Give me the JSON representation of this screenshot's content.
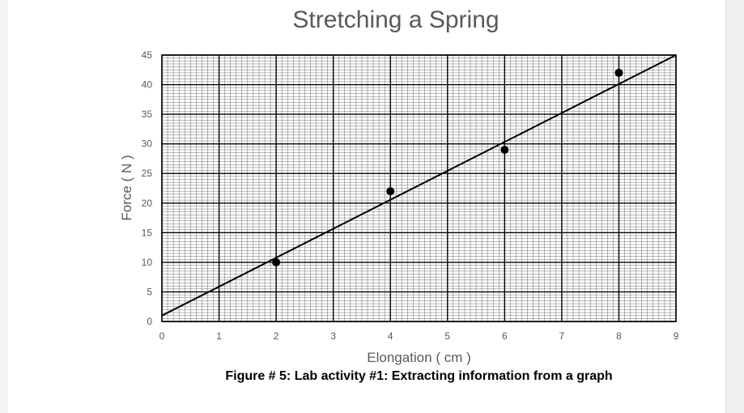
{
  "chart_data": {
    "type": "scatter",
    "title": "Stretching a Spring",
    "xlabel": "Elongation ( cm )",
    "ylabel": "Force ( N )",
    "xlim": [
      0,
      9
    ],
    "ylim": [
      0,
      45
    ],
    "x_ticks": [
      0,
      1,
      2,
      3,
      4,
      5,
      6,
      7,
      8,
      9
    ],
    "y_ticks": [
      0,
      5,
      10,
      15,
      20,
      25,
      30,
      35,
      40,
      45
    ],
    "grid": true,
    "points": [
      {
        "x": 2,
        "y": 10
      },
      {
        "x": 4,
        "y": 22
      },
      {
        "x": 6,
        "y": 29
      },
      {
        "x": 8,
        "y": 42
      }
    ],
    "trendline": {
      "x": [
        0,
        9
      ],
      "y": [
        1,
        45
      ]
    }
  },
  "caption": "Figure # 5: Lab activity #1: Extracting information from a graph"
}
